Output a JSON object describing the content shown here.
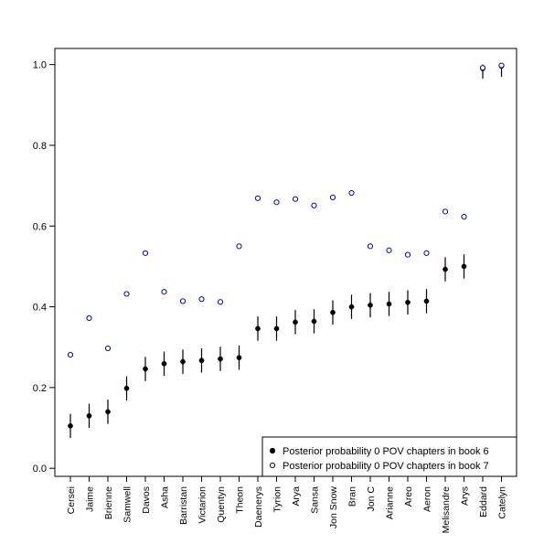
{
  "chart_data": {
    "type": "scatter",
    "title": "",
    "xlabel": "",
    "ylabel": "",
    "ylim": [
      -0.02,
      1.04
    ],
    "yticks": [
      0.0,
      0.2,
      0.4,
      0.6,
      0.8,
      1.0
    ],
    "ytick_labels": [
      "0.0",
      "0.2",
      "0.4",
      "0.6",
      "0.8",
      "1.0"
    ],
    "grid": false,
    "legend_position": "bottom-right",
    "categories": [
      "Cersei",
      "Jaime",
      "Brienne",
      "Samwell",
      "Davos",
      "Asha",
      "Barristan",
      "Victarion",
      "Quentyn",
      "Theon",
      "Daenerys",
      "Tyrion",
      "Arya",
      "Sansa",
      "Jon Snow",
      "Bran",
      "Jon C",
      "Arianne",
      "Areo",
      "Aeron",
      "Melisandre",
      "Arys",
      "Eddard",
      "Catelyn"
    ],
    "series": [
      {
        "name": "Posterior probability 0 POV chapters in book 6",
        "marker": "filled-circle",
        "color": "#000000",
        "values": [
          0.105,
          0.13,
          0.14,
          0.198,
          0.246,
          0.259,
          0.264,
          0.267,
          0.271,
          0.274,
          0.346,
          0.346,
          0.362,
          0.364,
          0.386,
          0.4,
          0.404,
          0.407,
          0.411,
          0.414,
          0.493,
          0.5,
          0.99,
          0.996
        ],
        "lower": [
          0.075,
          0.1,
          0.11,
          0.168,
          0.216,
          0.229,
          0.234,
          0.237,
          0.241,
          0.244,
          0.316,
          0.316,
          0.332,
          0.334,
          0.356,
          0.37,
          0.374,
          0.377,
          0.381,
          0.384,
          0.463,
          0.47,
          0.965,
          0.97
        ],
        "upper": [
          0.135,
          0.16,
          0.17,
          0.228,
          0.276,
          0.289,
          0.294,
          0.297,
          0.301,
          0.304,
          0.376,
          0.376,
          0.392,
          0.394,
          0.416,
          0.43,
          0.434,
          0.437,
          0.441,
          0.444,
          0.523,
          0.53,
          1.0,
          1.0
        ]
      },
      {
        "name": "Posterior probability 0 POV chapters in book 7",
        "marker": "open-circle",
        "color": "#0000cc",
        "values": [
          0.281,
          0.372,
          0.297,
          0.432,
          0.533,
          0.437,
          0.414,
          0.419,
          0.412,
          0.55,
          0.669,
          0.659,
          0.667,
          0.651,
          0.671,
          0.682,
          0.55,
          0.54,
          0.529,
          0.533,
          0.636,
          0.623,
          0.992,
          0.998
        ]
      }
    ]
  }
}
